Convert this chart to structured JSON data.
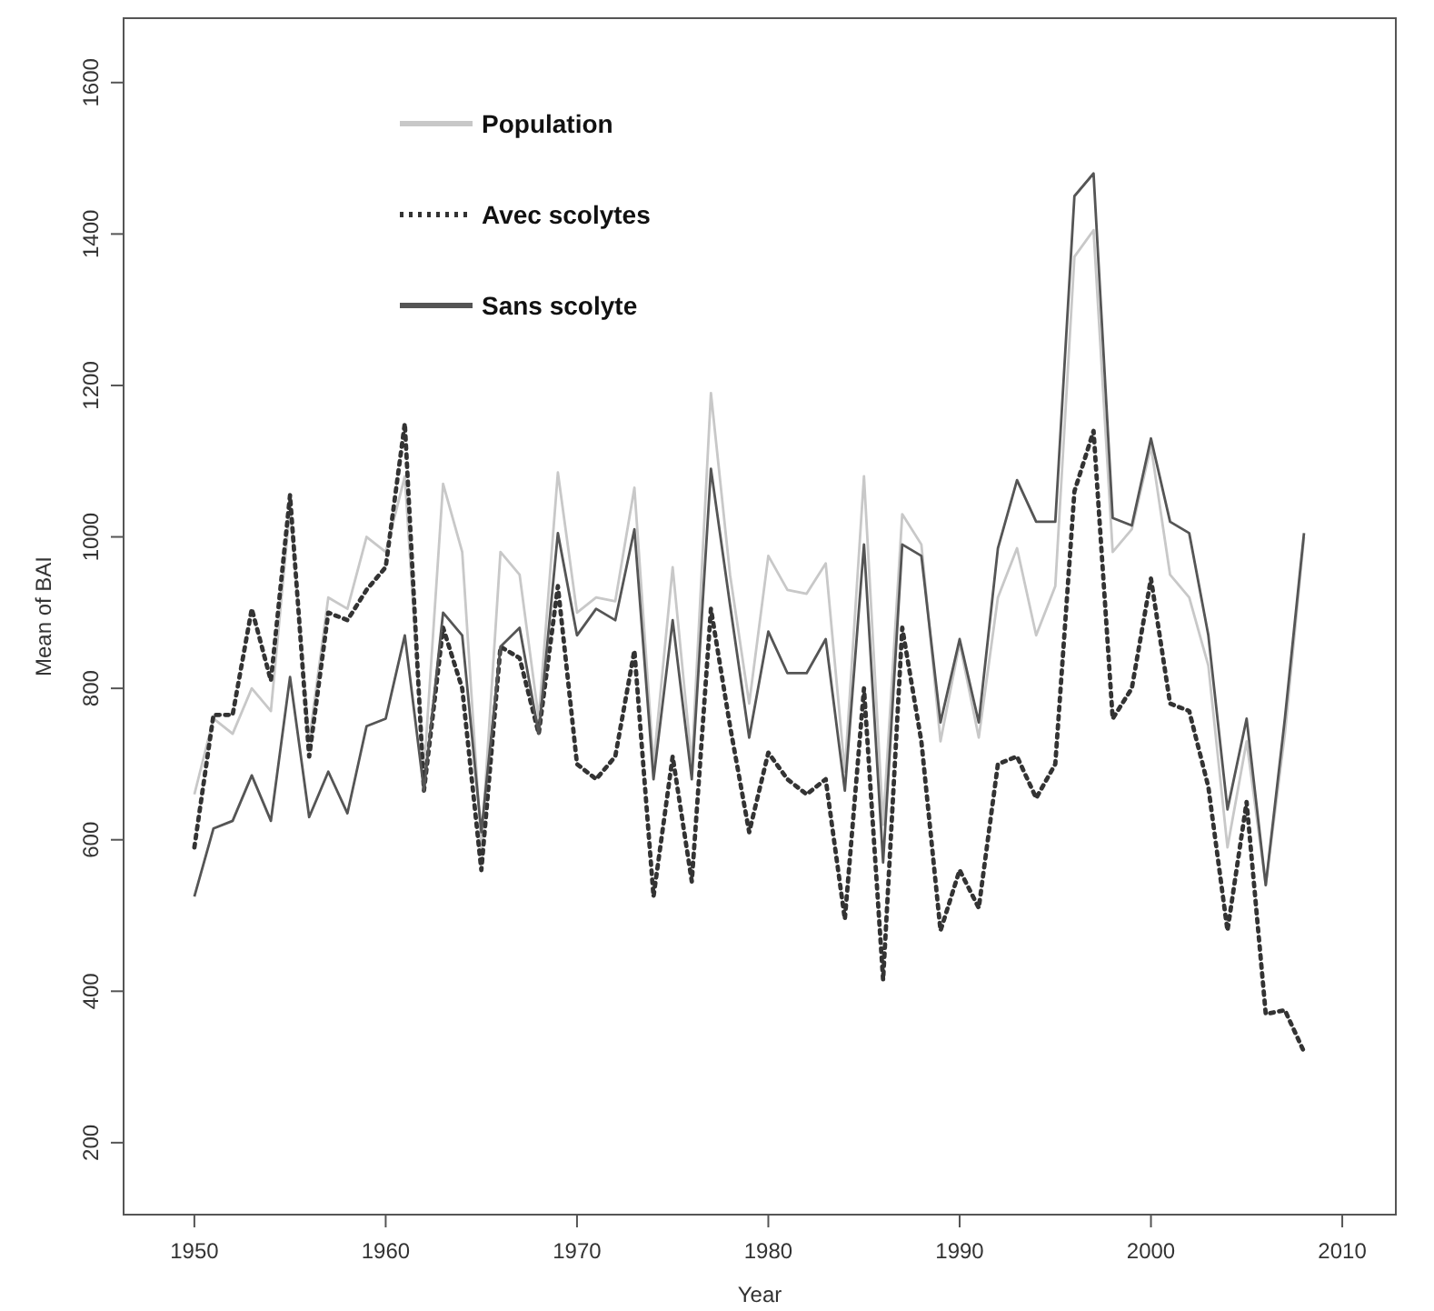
{
  "chart_data": {
    "type": "line",
    "xlabel": "Year",
    "ylabel": "Mean of BAI",
    "x": [
      1950,
      1951,
      1952,
      1953,
      1954,
      1955,
      1956,
      1957,
      1958,
      1959,
      1960,
      1961,
      1962,
      1963,
      1964,
      1965,
      1966,
      1967,
      1968,
      1969,
      1970,
      1971,
      1972,
      1973,
      1974,
      1975,
      1976,
      1977,
      1978,
      1979,
      1980,
      1981,
      1982,
      1983,
      1984,
      1985,
      1986,
      1987,
      1988,
      1989,
      1990,
      1991,
      1992,
      1993,
      1994,
      1995,
      1996,
      1997,
      1998,
      1999,
      2000,
      2001,
      2002,
      2003,
      2004,
      2005,
      2006,
      2007,
      2008
    ],
    "series": [
      {
        "name": "Population",
        "color": "#c8c8c8",
        "line_style": "solid",
        "values": [
          660,
          760,
          740,
          800,
          770,
          1040,
          730,
          920,
          905,
          1000,
          980,
          1080,
          690,
          1070,
          980,
          590,
          980,
          950,
          760,
          1085,
          900,
          920,
          915,
          1065,
          700,
          960,
          700,
          1190,
          950,
          780,
          975,
          930,
          925,
          965,
          690,
          1080,
          620,
          1030,
          990,
          730,
          860,
          735,
          920,
          985,
          870,
          935,
          1370,
          1405,
          980,
          1010,
          1120,
          950,
          920,
          830,
          590,
          730,
          540,
          740,
          1000
        ]
      },
      {
        "name": "Avec scolytes",
        "color": "#333333",
        "line_style": "dotted",
        "values": [
          590,
          765,
          765,
          905,
          810,
          1055,
          710,
          900,
          890,
          930,
          960,
          1150,
          665,
          880,
          800,
          560,
          855,
          840,
          740,
          935,
          700,
          680,
          710,
          850,
          525,
          710,
          545,
          905,
          750,
          610,
          715,
          680,
          660,
          680,
          495,
          800,
          415,
          880,
          730,
          480,
          560,
          510,
          700,
          710,
          655,
          700,
          1060,
          1140,
          760,
          800,
          945,
          780,
          770,
          670,
          480,
          650,
          370,
          375,
          320
        ]
      },
      {
        "name": "Sans scolyte",
        "color": "#555555",
        "line_style": "solid",
        "values": [
          525,
          615,
          625,
          685,
          625,
          815,
          630,
          690,
          635,
          750,
          760,
          870,
          665,
          900,
          870,
          610,
          855,
          880,
          740,
          1005,
          870,
          905,
          890,
          1010,
          680,
          890,
          680,
          1090,
          910,
          735,
          875,
          820,
          820,
          865,
          665,
          990,
          570,
          990,
          975,
          755,
          865,
          755,
          985,
          1075,
          1020,
          1020,
          1450,
          1480,
          1025,
          1015,
          1130,
          1020,
          1005,
          870,
          640,
          760,
          540,
          760,
          1005
        ]
      }
    ],
    "xlim": [
      1946.3,
      2012.8
    ],
    "xticks": [
      1950,
      1960,
      1970,
      1980,
      1990,
      2000,
      2010
    ],
    "ylim": [
      105,
      1685
    ],
    "yticks": [
      200,
      400,
      600,
      800,
      1000,
      1200,
      1400,
      1600
    ],
    "grid": false,
    "legend": "top left"
  }
}
